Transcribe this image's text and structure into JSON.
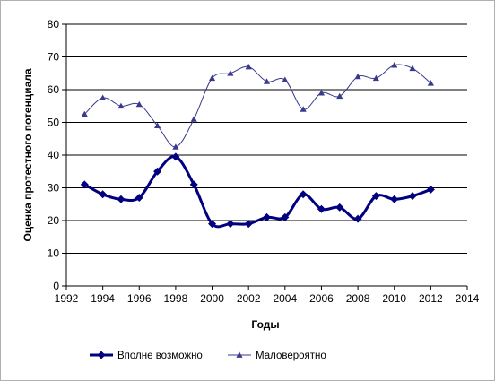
{
  "chart_data": {
    "type": "line",
    "title": "",
    "xlabel": "Годы",
    "ylabel": "Оценка протестного потенциала",
    "xlim": [
      1992,
      2014
    ],
    "ylim": [
      0,
      80
    ],
    "x_ticks": [
      1992,
      1994,
      1996,
      1998,
      2000,
      2002,
      2004,
      2006,
      2008,
      2010,
      2012,
      2014
    ],
    "y_ticks": [
      0,
      10,
      20,
      30,
      40,
      50,
      60,
      70,
      80
    ],
    "grid": "horizontal",
    "legend_position": "bottom",
    "x": [
      1993,
      1994,
      1995,
      1996,
      1997,
      1998,
      1999,
      2000,
      2001,
      2002,
      2003,
      2004,
      2005,
      2006,
      2007,
      2008,
      2009,
      2010,
      2011,
      2012
    ],
    "series": [
      {
        "name": "Вполне возможно",
        "marker": "diamond",
        "color": "#000080",
        "line_width": 3,
        "values": [
          31,
          28,
          26.5,
          27,
          35,
          39.5,
          31,
          19,
          19,
          19,
          21,
          21,
          28,
          23.5,
          24,
          20.5,
          27.5,
          26.5,
          27.5,
          29.5
        ]
      },
      {
        "name": "Маловероятно",
        "marker": "triangle",
        "color": "#3a3a8c",
        "line_width": 1,
        "values": [
          52.5,
          57.5,
          55,
          55.5,
          49,
          42.5,
          51,
          63.5,
          65,
          67,
          62.5,
          63,
          54,
          59,
          58,
          64,
          63.5,
          67.5,
          66.5,
          62
        ]
      }
    ]
  }
}
